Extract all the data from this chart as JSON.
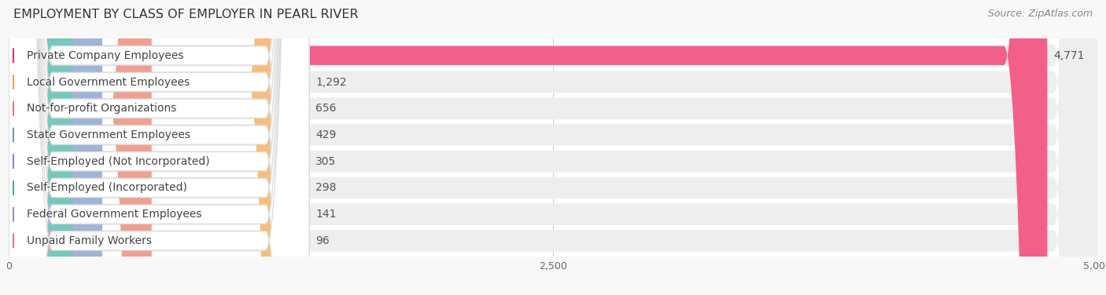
{
  "title": "EMPLOYMENT BY CLASS OF EMPLOYER IN PEARL RIVER",
  "source": "Source: ZipAtlas.com",
  "categories": [
    "Private Company Employees",
    "Local Government Employees",
    "Not-for-profit Organizations",
    "State Government Employees",
    "Self-Employed (Not Incorporated)",
    "Self-Employed (Incorporated)",
    "Federal Government Employees",
    "Unpaid Family Workers"
  ],
  "values": [
    4771,
    1292,
    656,
    429,
    305,
    298,
    141,
    96
  ],
  "bar_colors": [
    "#F26089",
    "#F9BC7A",
    "#F0A090",
    "#A0B4D8",
    "#C0A8D8",
    "#76C8BC",
    "#A8B4E8",
    "#F4A0B8"
  ],
  "dot_colors": [
    "#E83060",
    "#F0A040",
    "#E07868",
    "#7090B8",
    "#9878B8",
    "#48A8A0",
    "#8890C8",
    "#E87098"
  ],
  "background_color": "#f8f8f8",
  "row_bg_color": "#eeeeee",
  "label_bg_color": "#ffffff",
  "xlim": [
    0,
    5000
  ],
  "xticks": [
    0,
    2500,
    5000
  ],
  "xtick_labels": [
    "0",
    "2,500",
    "5,000"
  ],
  "title_fontsize": 11.5,
  "label_fontsize": 10,
  "value_fontsize": 10,
  "source_fontsize": 9
}
